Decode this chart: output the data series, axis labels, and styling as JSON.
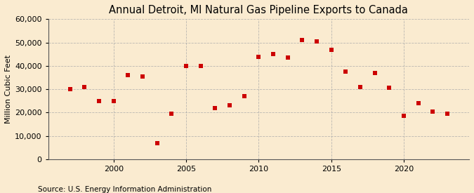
{
  "title": "Annual Detroit, MI Natural Gas Pipeline Exports to Canada",
  "ylabel": "Million Cubic Feet",
  "source": "Source: U.S. Energy Information Administration",
  "years": [
    1997,
    1998,
    1999,
    2000,
    2001,
    2002,
    2003,
    2004,
    2005,
    2006,
    2007,
    2008,
    2009,
    2010,
    2011,
    2012,
    2013,
    2014,
    2015,
    2016,
    2017,
    2018,
    2019,
    2020,
    2021,
    2022,
    2023
  ],
  "values": [
    30000,
    31000,
    25000,
    25000,
    36000,
    35500,
    7000,
    19500,
    40000,
    40000,
    22000,
    23000,
    27000,
    44000,
    45000,
    43500,
    51000,
    50500,
    47000,
    37500,
    31000,
    37000,
    30500,
    18500,
    24000,
    20500,
    19500
  ],
  "xlim": [
    1995.5,
    2024.5
  ],
  "ylim": [
    0,
    60000
  ],
  "yticks": [
    0,
    10000,
    20000,
    30000,
    40000,
    50000,
    60000
  ],
  "xticks": [
    2000,
    2005,
    2010,
    2015,
    2020
  ],
  "marker_color": "#cc0000",
  "marker_size": 25,
  "background_color": "#faebd0",
  "grid_color": "#aaaaaa",
  "title_fontsize": 10.5,
  "label_fontsize": 8,
  "tick_fontsize": 8,
  "source_fontsize": 7.5
}
